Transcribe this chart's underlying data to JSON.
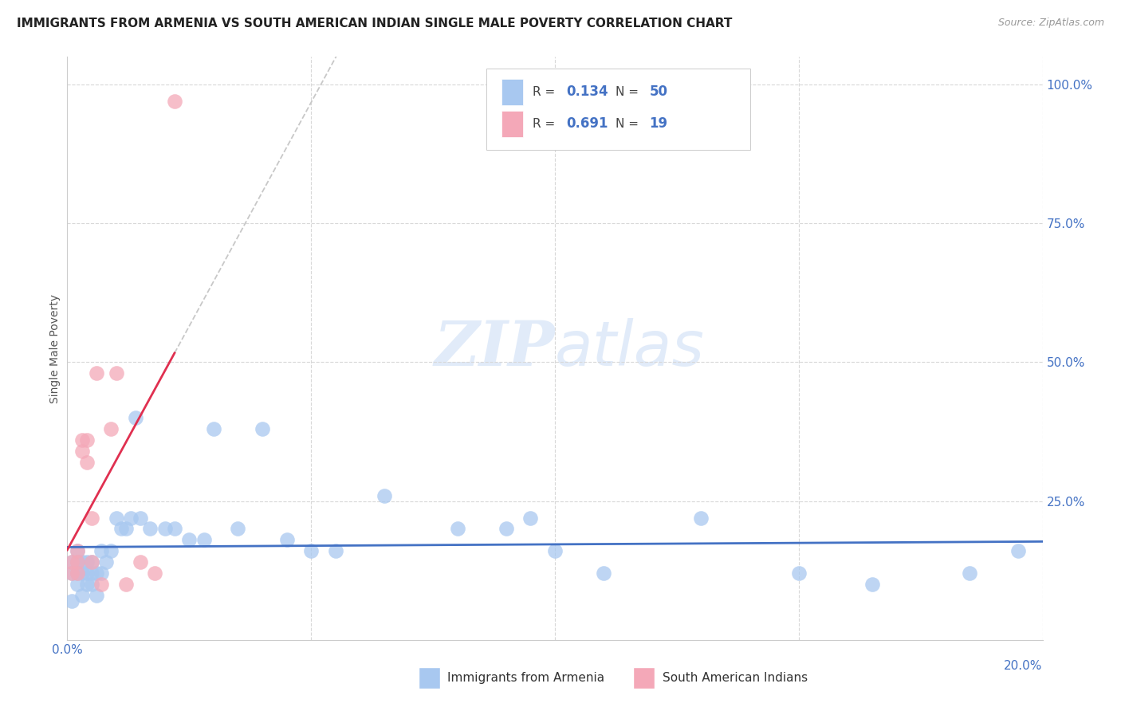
{
  "title": "IMMIGRANTS FROM ARMENIA VS SOUTH AMERICAN INDIAN SINGLE MALE POVERTY CORRELATION CHART",
  "source": "Source: ZipAtlas.com",
  "ylabel": "Single Male Poverty",
  "legend_label_1": "Immigrants from Armenia",
  "legend_label_2": "South American Indians",
  "armenia_color": "#a8c8f0",
  "south_am_color": "#f4a8b8",
  "trendline_armenia": "#4472c4",
  "trendline_south_am": "#e03050",
  "dashed_color": "#c8c8c8",
  "watermark_color": "#dce8f8",
  "background_color": "#ffffff",
  "grid_color": "#d8d8d8",
  "xlim": [
    0.0,
    0.2
  ],
  "ylim": [
    0.0,
    1.05
  ],
  "r_armenia": "0.134",
  "n_armenia": "50",
  "r_south": "0.691",
  "n_south": "19",
  "armenia_x": [
    0.001,
    0.001,
    0.001,
    0.002,
    0.002,
    0.002,
    0.002,
    0.003,
    0.003,
    0.003,
    0.004,
    0.004,
    0.004,
    0.005,
    0.005,
    0.005,
    0.006,
    0.006,
    0.007,
    0.007,
    0.008,
    0.009,
    0.01,
    0.011,
    0.012,
    0.013,
    0.014,
    0.015,
    0.017,
    0.02,
    0.022,
    0.025,
    0.028,
    0.03,
    0.035,
    0.04,
    0.045,
    0.05,
    0.055,
    0.065,
    0.08,
    0.09,
    0.095,
    0.1,
    0.11,
    0.13,
    0.15,
    0.165,
    0.185,
    0.195
  ],
  "armenia_y": [
    0.14,
    0.12,
    0.07,
    0.16,
    0.14,
    0.12,
    0.1,
    0.14,
    0.12,
    0.08,
    0.12,
    0.1,
    0.14,
    0.14,
    0.12,
    0.1,
    0.12,
    0.08,
    0.16,
    0.12,
    0.14,
    0.16,
    0.22,
    0.2,
    0.2,
    0.22,
    0.4,
    0.22,
    0.2,
    0.2,
    0.2,
    0.18,
    0.18,
    0.38,
    0.2,
    0.38,
    0.18,
    0.16,
    0.16,
    0.26,
    0.2,
    0.2,
    0.22,
    0.16,
    0.12,
    0.22,
    0.12,
    0.1,
    0.12,
    0.16
  ],
  "south_am_x": [
    0.001,
    0.001,
    0.002,
    0.002,
    0.002,
    0.003,
    0.003,
    0.004,
    0.004,
    0.005,
    0.005,
    0.006,
    0.007,
    0.009,
    0.01,
    0.012,
    0.015,
    0.018,
    0.022
  ],
  "south_am_y": [
    0.14,
    0.12,
    0.16,
    0.14,
    0.12,
    0.36,
    0.34,
    0.36,
    0.32,
    0.22,
    0.14,
    0.48,
    0.1,
    0.38,
    0.48,
    0.1,
    0.14,
    0.12,
    0.97
  ]
}
